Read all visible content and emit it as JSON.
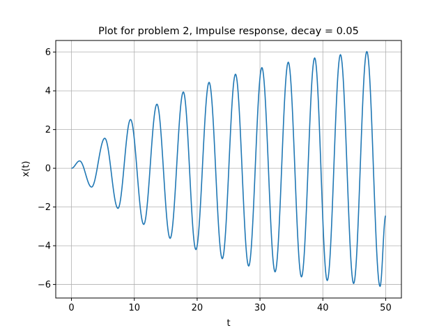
{
  "chart_data": {
    "type": "line",
    "title": "Plot for problem 2, Impulse response, decay = 0.05",
    "xlabel": "t",
    "ylabel": "x(t)",
    "xlim": [
      -2.5,
      52.5
    ],
    "ylim": [
      -6.7,
      6.6
    ],
    "xticks": [
      0,
      10,
      20,
      30,
      40,
      50
    ],
    "xtick_labels": [
      "0",
      "10",
      "20",
      "30",
      "40",
      "50"
    ],
    "yticks": [
      -6,
      -4,
      -2,
      0,
      2,
      4,
      6
    ],
    "ytick_labels": [
      "−6",
      "−4",
      "−2",
      "0",
      "2",
      "4",
      "6"
    ],
    "grid": true,
    "line_color": "#1f77b4",
    "series": [
      {
        "x": [
          0,
          1.3,
          3.2,
          5.3,
          7.4,
          9.4,
          11.5,
          13.6,
          15.7,
          17.8,
          19.8,
          21.9,
          24.0,
          26.1,
          28.2,
          30.3,
          32.4,
          34.5,
          36.6,
          38.7,
          40.7,
          42.8,
          44.9,
          47.0,
          49.1,
          50.0
        ],
        "y": [
          0,
          0.38,
          -0.97,
          1.55,
          -2.07,
          2.52,
          -2.9,
          3.31,
          -3.62,
          3.94,
          -4.2,
          4.44,
          -4.67,
          4.86,
          -5.05,
          5.2,
          -5.35,
          5.48,
          -5.61,
          5.7,
          -5.8,
          5.87,
          -5.95,
          6.03,
          -6.1,
          -2.45
        ]
      }
    ]
  }
}
